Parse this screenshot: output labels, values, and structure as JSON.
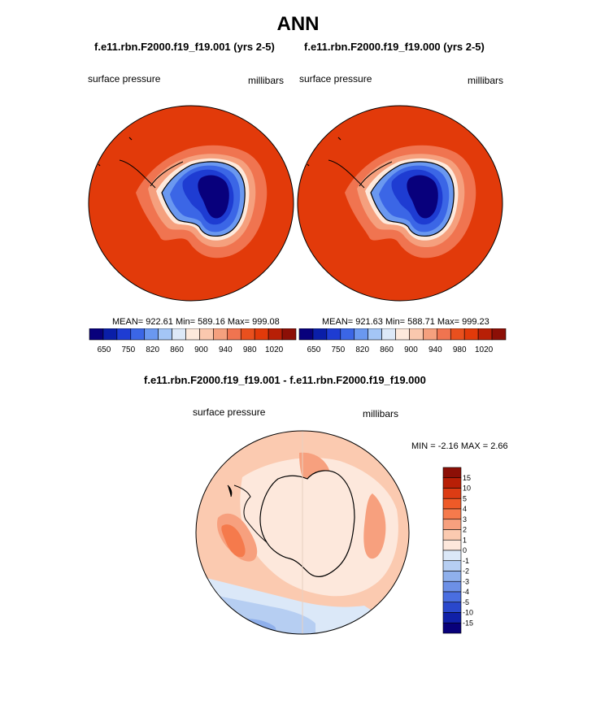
{
  "title": "ANN",
  "panels": [
    {
      "title": "f.e11.rbn.F2000.f19_f19.001 (yrs 2-5)",
      "left_label": "surface pressure",
      "right_label": "millibars",
      "stats": "MEAN= 922.61  Min= 589.16  Max= 999.08",
      "colorbar_ticks": [
        "650",
        "750",
        "820",
        "860",
        "900",
        "940",
        "980",
        "1020"
      ]
    },
    {
      "title": "f.e11.rbn.F2000.f19_f19.000 (yrs 2-5)",
      "left_label": "surface pressure",
      "right_label": "millibars",
      "stats": "MEAN= 921.63  Min= 588.71  Max= 999.23",
      "colorbar_ticks": [
        "650",
        "750",
        "820",
        "860",
        "900",
        "940",
        "980",
        "1020"
      ]
    }
  ],
  "diff": {
    "title": "f.e11.rbn.F2000.f19_f19.001 - f.e11.rbn.F2000.f19_f19.000",
    "left_label": "surface pressure",
    "right_label": "millibars",
    "stats": "MIN =  -2.16 MAX =   2.66",
    "legend_labels": [
      "15",
      "10",
      "5",
      "4",
      "3",
      "2",
      "1",
      "0",
      "-1",
      "-2",
      "-3",
      "-4",
      "-5",
      "-10",
      "-15"
    ]
  },
  "colors": {
    "pressure_scale": [
      "#08007c",
      "#0a1ea8",
      "#1e3cd2",
      "#3b66e6",
      "#6a98f0",
      "#a4c6f6",
      "#dde9f8",
      "#fde9dc",
      "#fac8ae",
      "#f5a07e",
      "#f07450",
      "#e9501e",
      "#e23a0a",
      "#b81f06",
      "#8c0f06"
    ],
    "diff_scale": [
      "#8c0f06",
      "#b81f06",
      "#dc3c14",
      "#ee5a28",
      "#f57a4c",
      "#f7a07e",
      "#fbcab0",
      "#fde8dc",
      "#dbe8f8",
      "#b6cef2",
      "#8fb0ec",
      "#6d90e6",
      "#4a6ee0",
      "#2a48cc",
      "#1020a8",
      "#08007a"
    ],
    "land_outline": "#000000"
  }
}
